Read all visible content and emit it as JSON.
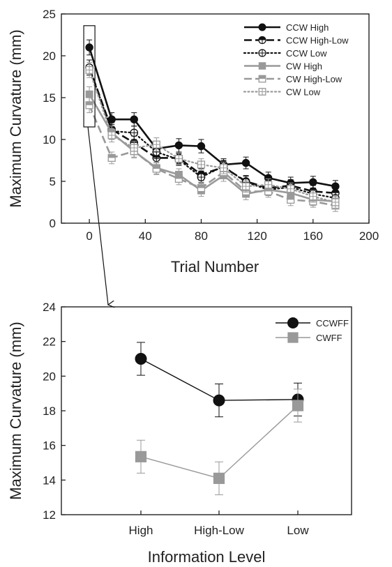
{
  "chart_data": [
    {
      "type": "line",
      "title": "",
      "xlabel": "Trial Number",
      "ylabel": "Maximum Curvature (mm)",
      "xlim": [
        -20,
        200
      ],
      "ylim": [
        0,
        25
      ],
      "xticks": [
        0,
        40,
        80,
        120,
        160,
        200
      ],
      "yticks": [
        0,
        5,
        10,
        15,
        20,
        25
      ],
      "grid": false,
      "legend_position": "top-right",
      "x": [
        0,
        16,
        32,
        48,
        64,
        80,
        96,
        112,
        128,
        144,
        160,
        176
      ],
      "series": [
        {
          "name": "CCW High",
          "color": "#111111",
          "line_style": "solid",
          "marker": "filled-circle",
          "values": [
            21.0,
            12.4,
            12.4,
            8.9,
            9.3,
            9.2,
            7.0,
            7.2,
            5.4,
            4.8,
            4.9,
            4.4
          ],
          "errors": [
            0.9,
            0.8,
            0.8,
            0.8,
            0.8,
            0.8,
            0.7,
            0.7,
            0.7,
            0.7,
            0.7,
            0.7
          ]
        },
        {
          "name": "CCW High-Low",
          "color": "#111111",
          "line_style": "dashed",
          "marker": "half-filled-circle",
          "values": [
            18.6,
            11.2,
            9.6,
            7.8,
            7.8,
            5.8,
            6.7,
            5.0,
            4.2,
            4.5,
            3.8,
            3.6
          ],
          "errors": [
            0.9,
            0.8,
            0.8,
            0.8,
            0.7,
            0.7,
            0.7,
            0.7,
            0.7,
            0.7,
            0.7,
            0.7
          ]
        },
        {
          "name": "CCW Low",
          "color": "#111111",
          "line_style": "dotted",
          "marker": "open-crossed-circle",
          "values": [
            18.6,
            11.0,
            10.8,
            8.5,
            7.6,
            5.5,
            6.8,
            4.9,
            4.0,
            4.3,
            3.5,
            3.0
          ],
          "errors": [
            0.9,
            0.8,
            0.8,
            0.8,
            0.7,
            0.7,
            0.7,
            0.7,
            0.7,
            0.7,
            0.7,
            0.7
          ]
        },
        {
          "name": "CW High",
          "color": "#999999",
          "line_style": "solid",
          "marker": "filled-square",
          "values": [
            15.4,
            10.8,
            8.6,
            6.6,
            5.8,
            3.9,
            5.7,
            3.5,
            4.0,
            3.6,
            2.8,
            2.6
          ],
          "errors": [
            0.9,
            0.8,
            0.8,
            0.7,
            0.7,
            0.7,
            0.7,
            0.7,
            0.7,
            0.7,
            0.7,
            0.7
          ]
        },
        {
          "name": "CW High-Low",
          "color": "#999999",
          "line_style": "dashed",
          "marker": "half-filled-square",
          "values": [
            14.1,
            7.8,
            8.6,
            6.5,
            5.3,
            4.2,
            6.1,
            3.8,
            3.8,
            2.8,
            2.6,
            2.1
          ],
          "errors": [
            0.9,
            0.7,
            0.7,
            0.7,
            0.7,
            0.7,
            0.7,
            0.7,
            0.7,
            0.7,
            0.7,
            0.7
          ]
        },
        {
          "name": "CW Low",
          "color": "#999999",
          "line_style": "dotted",
          "marker": "open-crossed-square",
          "values": [
            18.3,
            10.5,
            9.0,
            9.4,
            7.7,
            7.0,
            6.6,
            4.4,
            4.6,
            4.1,
            3.2,
            2.5
          ],
          "errors": [
            0.9,
            0.8,
            0.8,
            0.8,
            0.7,
            0.7,
            0.7,
            0.7,
            0.7,
            0.7,
            0.7,
            0.7
          ]
        }
      ],
      "annotation": {
        "type": "highlight-box",
        "x_range": [
          -4,
          4
        ],
        "y_range": [
          11.5,
          23.6
        ],
        "arrow_to": "bottom chart"
      }
    },
    {
      "type": "line",
      "title": "",
      "xlabel": "Information Level",
      "ylabel": "Maximum Curvature (mm)",
      "ylim": [
        12,
        24
      ],
      "yticks": [
        12,
        14,
        16,
        18,
        20,
        22,
        24
      ],
      "categories": [
        "High",
        "High-Low",
        "Low"
      ],
      "grid": false,
      "legend_position": "top-right",
      "series": [
        {
          "name": "CCWFF",
          "color": "#111111",
          "marker": "filled-circle",
          "values": [
            21.0,
            18.6,
            18.65
          ],
          "errors": [
            0.95,
            0.95,
            0.95
          ]
        },
        {
          "name": "CWFF",
          "color": "#999999",
          "marker": "filled-square",
          "values": [
            15.35,
            14.1,
            18.3
          ],
          "errors": [
            0.95,
            0.95,
            0.95
          ]
        }
      ]
    }
  ]
}
